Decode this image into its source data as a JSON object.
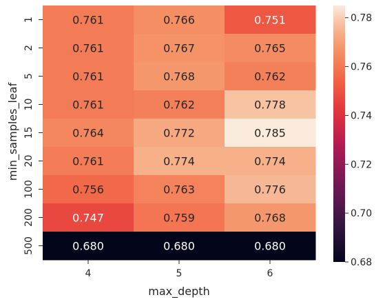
{
  "chart_data": {
    "type": "heatmap",
    "title": "",
    "xlabel": "max_depth",
    "ylabel": "min_samples_leaf",
    "x_categories": [
      "4",
      "5",
      "6"
    ],
    "y_categories": [
      "1",
      "2",
      "5",
      "10",
      "15",
      "20",
      "100",
      "200",
      "500"
    ],
    "values": [
      [
        0.761,
        0.766,
        0.751
      ],
      [
        0.761,
        0.767,
        0.765
      ],
      [
        0.761,
        0.768,
        0.762
      ],
      [
        0.761,
        0.762,
        0.778
      ],
      [
        0.764,
        0.772,
        0.785
      ],
      [
        0.761,
        0.774,
        0.774
      ],
      [
        0.756,
        0.763,
        0.776
      ],
      [
        0.747,
        0.759,
        0.768
      ],
      [
        0.68,
        0.68,
        0.68
      ]
    ],
    "value_format": "0.000",
    "colormap": "rocket",
    "vmin": 0.68,
    "vmax": 0.785,
    "colorbar_ticks": [
      "0.68",
      "0.70",
      "0.72",
      "0.74",
      "0.76",
      "0.78"
    ],
    "annotations": true,
    "grid": false
  }
}
